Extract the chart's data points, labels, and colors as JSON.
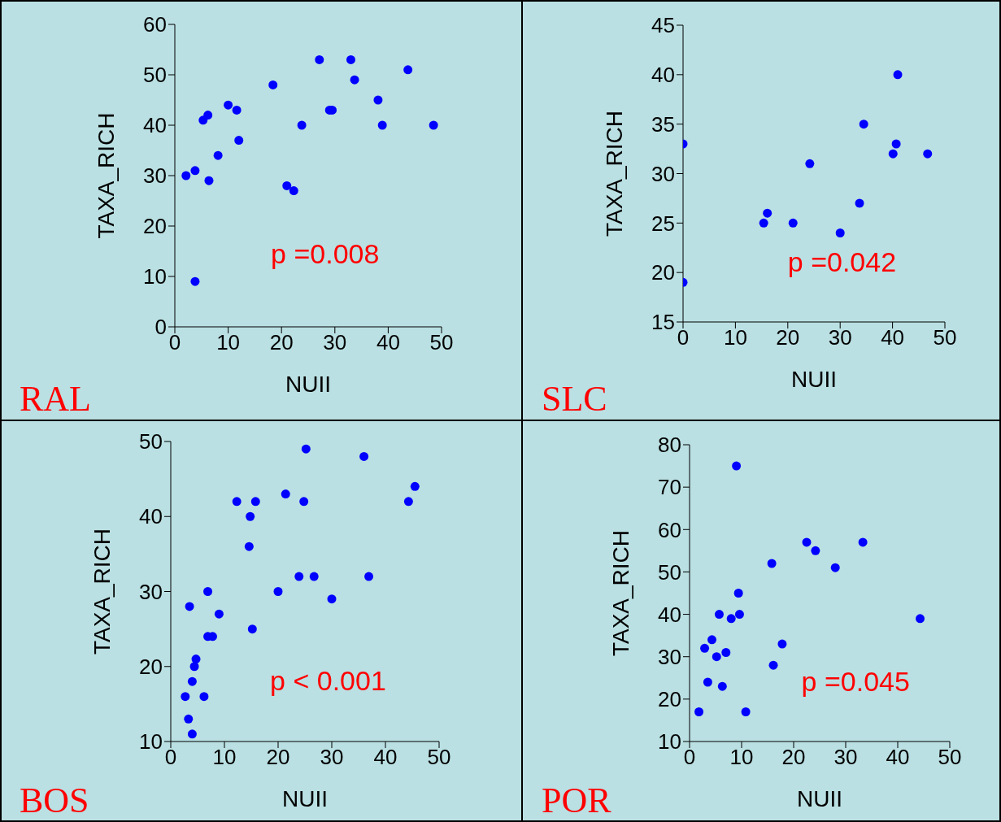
{
  "chart_data": [
    {
      "type": "scatter",
      "title": "RAL",
      "xlabel": "NUII",
      "ylabel": "TAXA_RICH",
      "annotations": [
        "p =0.008"
      ],
      "xlim": [
        0,
        50
      ],
      "xticks": [
        0,
        10,
        20,
        30,
        40,
        50
      ],
      "ylim": [
        0,
        60
      ],
      "yticks": [
        0,
        10,
        20,
        30,
        40,
        50,
        60
      ],
      "grid": false,
      "legend": false,
      "marker": "circle",
      "series": [
        {
          "color": "#0000ff",
          "x": [
            2.1,
            3.8,
            3.8,
            5.3,
            6.2,
            6.4,
            8.1,
            10,
            11.6,
            12,
            18.4,
            21,
            22.3,
            23.8,
            27.1,
            29.0,
            29.5,
            33,
            33.7,
            38.1,
            38.9,
            43.7,
            48.5
          ],
          "values": [
            30,
            31,
            9,
            41,
            42,
            29,
            34,
            44,
            43,
            37,
            48,
            28,
            27,
            40,
            53,
            43,
            43,
            53,
            49,
            45,
            40,
            51,
            40
          ]
        }
      ]
    },
    {
      "type": "scatter",
      "title": "SLC",
      "xlabel": "NUII",
      "ylabel": "TAXA_RICH",
      "annotations": [
        "p =0.042"
      ],
      "xlim": [
        0,
        50
      ],
      "xticks": [
        0,
        10,
        20,
        30,
        40,
        50
      ],
      "ylim": [
        15,
        45
      ],
      "yticks": [
        15,
        20,
        25,
        30,
        35,
        40,
        45
      ],
      "grid": false,
      "legend": false,
      "marker": "circle",
      "series": [
        {
          "color": "#0000ff",
          "x": [
            0,
            0,
            15.4,
            16.1,
            21,
            24.2,
            30,
            33.7,
            34.5,
            40.1,
            40.7,
            41,
            46.7
          ],
          "values": [
            33,
            19,
            25,
            26,
            25,
            31,
            24,
            27,
            35,
            32,
            33,
            40,
            32
          ]
        }
      ]
    },
    {
      "type": "scatter",
      "title": "BOS",
      "xlabel": "NUII",
      "ylabel": "TAXA_RICH",
      "annotations": [
        "p < 0.001"
      ],
      "xlim": [
        0,
        50
      ],
      "xticks": [
        0,
        10,
        20,
        30,
        40,
        50
      ],
      "ylim": [
        10,
        50
      ],
      "yticks": [
        10,
        20,
        30,
        40,
        50
      ],
      "grid": false,
      "legend": false,
      "marker": "circle",
      "series": [
        {
          "color": "#0000ff",
          "x": [
            2.7,
            3.3,
            4,
            3.5,
            4,
            4.4,
            4.7,
            6.2,
            6.9,
            6.9,
            7.8,
            9,
            12.3,
            14.6,
            14.8,
            15.8,
            15.2,
            20,
            21.4,
            23.9,
            24.8,
            25.2,
            26.7,
            30,
            36,
            36.9,
            44.3,
            45.5
          ],
          "values": [
            16,
            13,
            11,
            28,
            18,
            20,
            21,
            16,
            30,
            24,
            24,
            27,
            42,
            36,
            40,
            42,
            25,
            30,
            43,
            32,
            42,
            49,
            32,
            29,
            48,
            32,
            42,
            44
          ]
        }
      ]
    },
    {
      "type": "scatter",
      "title": "POR",
      "xlabel": "NUII",
      "ylabel": "TAXA_RICH",
      "annotations": [
        "p =0.045"
      ],
      "xlim": [
        0,
        50
      ],
      "xticks": [
        0,
        10,
        20,
        30,
        40,
        50
      ],
      "ylim": [
        10,
        80
      ],
      "yticks": [
        10,
        20,
        30,
        40,
        50,
        60,
        70,
        80
      ],
      "grid": false,
      "legend": false,
      "marker": "circle",
      "series": [
        {
          "color": "#0000ff",
          "x": [
            1.8,
            3.5,
            2.9,
            4.3,
            5.2,
            5.7,
            6.3,
            7,
            8,
            9,
            9.4,
            9.6,
            10.8,
            15.8,
            16.1,
            17.8,
            22.5,
            24.2,
            28,
            33.3,
            44.3
          ],
          "values": [
            17,
            24,
            32,
            34,
            30,
            40,
            23,
            31,
            39,
            75,
            45,
            40,
            17,
            52,
            28,
            33,
            57,
            55,
            51,
            57,
            39
          ]
        }
      ]
    }
  ]
}
